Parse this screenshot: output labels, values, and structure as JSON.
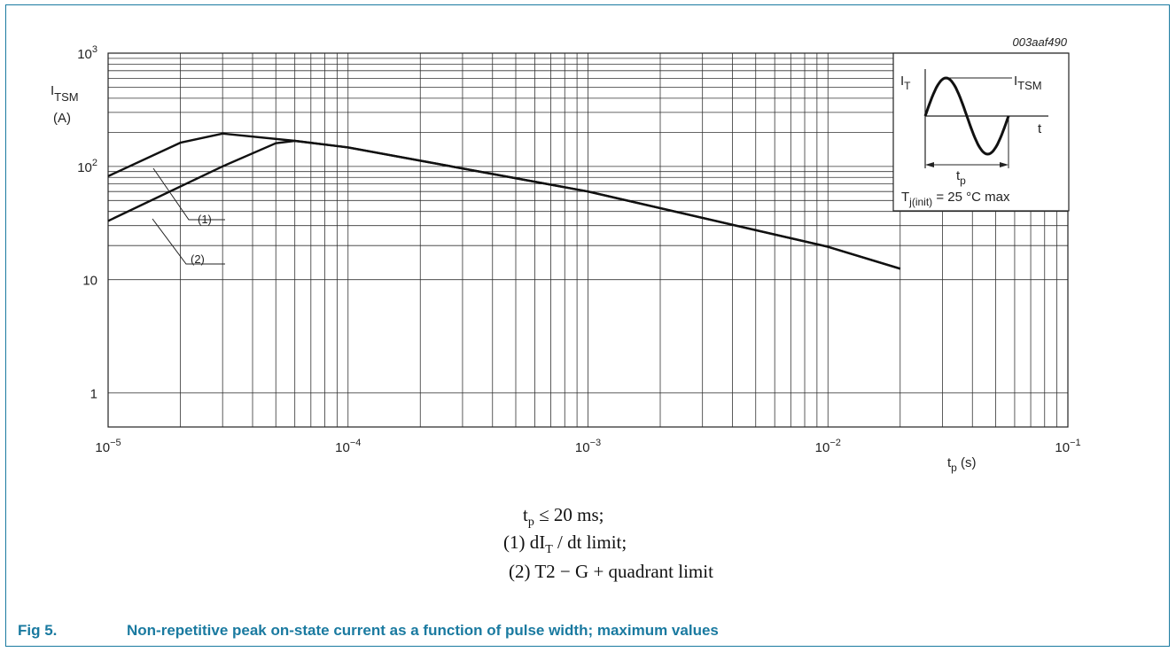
{
  "figure": {
    "code": "003aaf490",
    "number": "Fig 5.",
    "caption": "Non-repetitive peak on-state current as a function of pulse width; maximum values"
  },
  "chart_data": {
    "type": "line",
    "title": "",
    "xscale": "log",
    "yscale": "log",
    "xlim": [
      1e-05,
      0.1
    ],
    "ylim": [
      0.5,
      1000
    ],
    "xlabel": {
      "main": "t",
      "sub": "p",
      "unit": " (s)"
    },
    "ylabel": {
      "main": "I",
      "sub": "TSM",
      "unit": "(A)"
    },
    "grid": true,
    "x_ticks": [
      {
        "value": 1e-05,
        "base": "10",
        "exp": "−5"
      },
      {
        "value": 0.0001,
        "base": "10",
        "exp": "−4"
      },
      {
        "value": 0.001,
        "base": "10",
        "exp": "−3"
      },
      {
        "value": 0.01,
        "base": "10",
        "exp": "−2"
      },
      {
        "value": 0.1,
        "base": "10",
        "exp": "−1"
      }
    ],
    "y_ticks": [
      {
        "value": 1,
        "base": "1",
        "exp": ""
      },
      {
        "value": 10,
        "base": "10",
        "exp": ""
      },
      {
        "value": 100,
        "base": "10",
        "exp": "2"
      },
      {
        "value": 1000,
        "base": "10",
        "exp": "3"
      }
    ],
    "series": [
      {
        "name": "(1)",
        "x": [
          1e-05,
          2e-05,
          3e-05,
          6e-05,
          0.0001,
          0.001,
          0.01,
          0.02
        ],
        "y": [
          82,
          162,
          195,
          168,
          147,
          60,
          19.5,
          12.5
        ]
      },
      {
        "name": "(2)",
        "x": [
          1e-05,
          3e-05,
          5e-05,
          6e-05,
          0.0001,
          0.001,
          0.01,
          0.02
        ],
        "y": [
          33,
          100,
          160,
          168,
          147,
          60,
          19.5,
          12.5
        ]
      }
    ]
  },
  "inset": {
    "label_it": "I",
    "label_it_sub": "T",
    "label_itsm": "I",
    "label_itsm_sub": "TSM",
    "label_t": "t",
    "label_tp": "t",
    "label_tp_sub": "p",
    "temp_prefix": "T",
    "temp_sub": "j(init)",
    "temp_text": " = 25 °C max"
  },
  "notes": {
    "line1_pre": "t",
    "line1_sub": "p",
    "line1_post": " ≤ 20 ms;",
    "line2_pre": "(1)  dI",
    "line2_sub": "T",
    "line2_post": " / dt limit;",
    "line3": "(2)  T2  − G + quadrant limit"
  }
}
